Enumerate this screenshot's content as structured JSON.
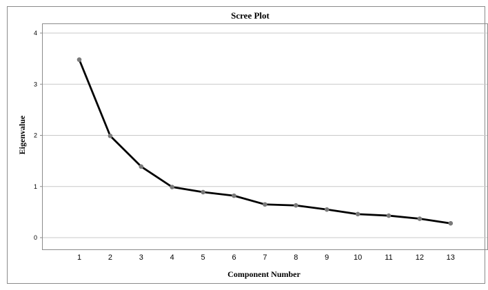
{
  "chart_data": {
    "type": "line",
    "title": "Scree Plot",
    "xlabel": "Component Number",
    "ylabel": "Eigenvalue",
    "x": [
      1,
      2,
      3,
      4,
      5,
      6,
      7,
      8,
      9,
      10,
      11,
      12,
      13
    ],
    "series": [
      {
        "values": [
          3.48,
          1.99,
          1.39,
          0.99,
          0.89,
          0.82,
          0.65,
          0.63,
          0.55,
          0.46,
          0.43,
          0.37,
          0.28
        ]
      }
    ],
    "x_ticks": [
      "1",
      "2",
      "3",
      "4",
      "5",
      "6",
      "7",
      "8",
      "9",
      "10",
      "11",
      "12",
      "13"
    ],
    "y_ticks": [
      "0",
      "1",
      "2",
      "3",
      "4"
    ],
    "ylim": [
      -0.22,
      4.1
    ],
    "grid": "horizontal",
    "legend": "none",
    "colors": {
      "line": "#000000",
      "marker": "#7a7a7a",
      "grid": "#c8c8c8",
      "frame": "#8a8a8a"
    }
  }
}
